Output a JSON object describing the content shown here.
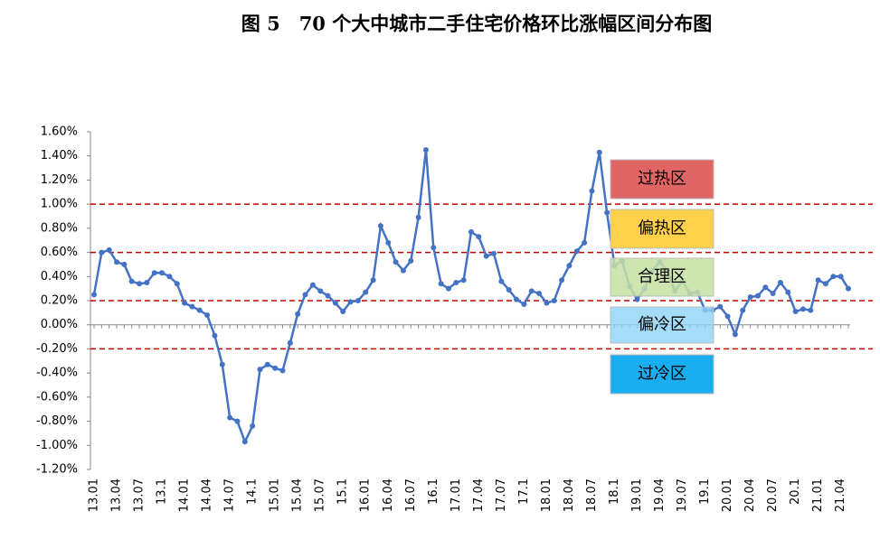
{
  "chart_data": {
    "type": "line",
    "title": "图 5　70 个大中城市二手住宅价格环比涨幅区间分布图",
    "categories": [
      "13.01",
      null,
      null,
      "13.04",
      null,
      null,
      "13.07",
      null,
      null,
      "13.1",
      null,
      null,
      "14.01",
      null,
      null,
      "14.04",
      null,
      null,
      "14.07",
      null,
      null,
      "14.1",
      null,
      null,
      "15.01",
      null,
      null,
      "15.04",
      null,
      null,
      "15.07",
      null,
      null,
      "15.1",
      null,
      null,
      "16.01",
      null,
      null,
      "16.04",
      null,
      null,
      "16.07",
      null,
      null,
      "16.1",
      null,
      null,
      "17.01",
      null,
      null,
      "17.04",
      null,
      null,
      "17.07",
      null,
      null,
      "17.1",
      null,
      null,
      "18.01",
      null,
      null,
      "18.04",
      null,
      null,
      "18.07",
      null,
      null,
      "18.1",
      null,
      null,
      "19.01",
      null,
      null,
      "19.04",
      null,
      null,
      "19.07",
      null,
      null,
      "19.1",
      null,
      null,
      "20.01",
      null,
      null,
      "20.04",
      null,
      null,
      "20.07",
      null,
      null,
      "20.1",
      null,
      null,
      "21.01",
      null,
      null,
      "21.04",
      null
    ],
    "series": [
      {
        "color": "#4472c4",
        "values": [
          0.25,
          0.6,
          0.62,
          0.52,
          0.5,
          0.36,
          0.34,
          0.35,
          0.43,
          0.43,
          0.4,
          0.34,
          0.18,
          0.15,
          0.12,
          0.08,
          -0.09,
          -0.33,
          -0.77,
          -0.8,
          -0.97,
          -0.84,
          -0.37,
          -0.33,
          -0.36,
          -0.38,
          -0.15,
          0.09,
          0.25,
          0.33,
          0.28,
          0.24,
          0.18,
          0.11,
          0.19,
          0.2,
          0.27,
          0.37,
          0.82,
          0.68,
          0.52,
          0.45,
          0.53,
          0.89,
          1.45,
          0.64,
          0.34,
          0.3,
          0.35,
          0.37,
          0.77,
          0.73,
          0.57,
          0.59,
          0.36,
          0.29,
          0.21,
          0.17,
          0.28,
          0.26,
          0.18,
          0.2,
          0.37,
          0.49,
          0.61,
          0.68,
          1.11,
          1.43,
          0.93,
          0.49,
          0.53,
          0.32,
          0.21,
          0.3,
          0.45,
          0.52,
          0.45,
          0.28,
          0.36,
          0.26,
          0.27,
          0.12,
          0.12,
          0.15,
          0.07,
          -0.08,
          0.12,
          0.23,
          0.24,
          0.31,
          0.26,
          0.35,
          0.27,
          0.11,
          0.13,
          0.12,
          0.37,
          0.34,
          0.4,
          0.4,
          0.3
        ]
      }
    ],
    "ylim": [
      -1.2,
      1.6
    ],
    "yticks": [
      {
        "value": -1.2,
        "label": "-1.20%"
      },
      {
        "value": -1.0,
        "label": "-1.00%"
      },
      {
        "value": -0.8,
        "label": "-0.80%"
      },
      {
        "value": -0.6,
        "label": "-0.60%"
      },
      {
        "value": -0.4,
        "label": "-0.40%"
      },
      {
        "value": -0.2,
        "label": "-0.20%"
      },
      {
        "value": 0,
        "label": "0.00%"
      },
      {
        "value": 0.2,
        "label": "0.20%"
      },
      {
        "value": 0.4,
        "label": "0.40%"
      },
      {
        "value": 0.6,
        "label": "0.60%"
      },
      {
        "value": 0.8,
        "label": "0.80%"
      },
      {
        "value": 1.0,
        "label": "1.00%"
      },
      {
        "value": 1.2,
        "label": "1.20%"
      },
      {
        "value": 1.4,
        "label": "1.40%"
      },
      {
        "value": 1.6,
        "label": "1.60%"
      }
    ],
    "reference_lines": [
      1.0,
      0.6,
      0.2,
      -0.2
    ],
    "reference_color": "#c00000",
    "zones": [
      {
        "label": "过热区",
        "color": "#e06666"
      },
      {
        "label": "偏热区",
        "color": "#ffd04a"
      },
      {
        "label": "合理区",
        "color": "#c5e0a5"
      },
      {
        "label": "偏冷区",
        "color": "#8fd3f5"
      },
      {
        "label": "过冷区",
        "color": "#19aeef"
      }
    ]
  }
}
